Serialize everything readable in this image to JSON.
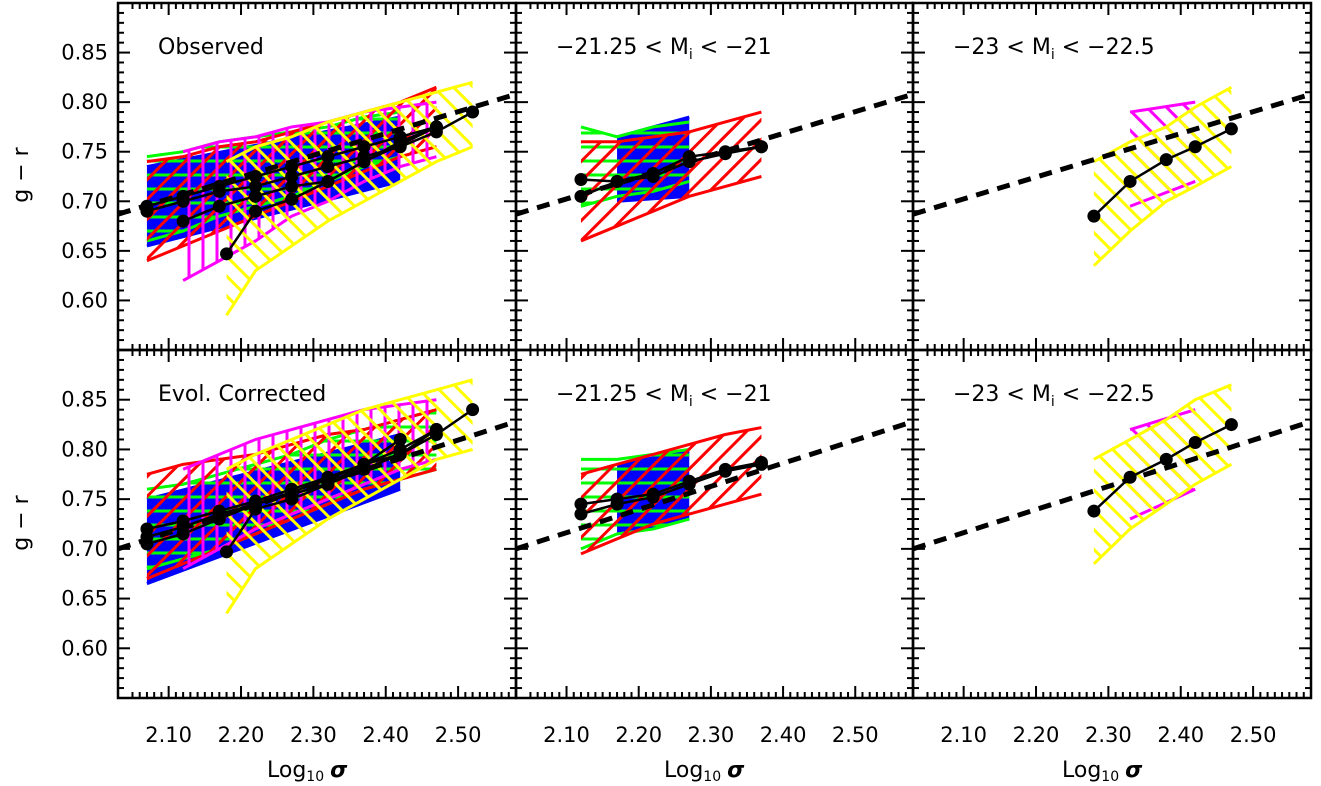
{
  "colors": {
    "blue": "#0000ff",
    "green": "#00ff00",
    "red": "#ff0000",
    "magenta": "#ff00ff",
    "yellow": "#ffff00",
    "black": "#000000"
  },
  "axes": {
    "xlabel": "Log",
    "xlabel_sub": "10",
    "xlabel_sigma": "σ",
    "ylabel": "g − r",
    "xticks": [
      "2.10",
      "2.20",
      "2.30",
      "2.40",
      "2.50"
    ],
    "yticks": [
      "0.85",
      "0.80",
      "0.75",
      "0.70",
      "0.65",
      "0.60"
    ]
  },
  "chart_data": [
    {
      "type": "line",
      "panel": "top-left",
      "label_lines": [
        "Observed"
      ],
      "xlim": [
        2.03,
        2.58
      ],
      "ylim": [
        0.55,
        0.9
      ],
      "bands": [
        {
          "color": "blue",
          "style": "solid",
          "x": [
            2.07,
            2.42
          ],
          "lo": [
            0.655,
            0.72
          ],
          "hi": [
            0.735,
            0.785
          ]
        },
        {
          "color": "green",
          "style": "horizontal",
          "x": [
            2.07,
            2.12,
            2.17,
            2.22,
            2.27,
            2.32,
            2.37,
            2.42
          ],
          "lo": [
            0.66,
            0.67,
            0.685,
            0.695,
            0.705,
            0.72,
            0.735,
            0.745
          ],
          "hi": [
            0.745,
            0.75,
            0.76,
            0.765,
            0.77,
            0.775,
            0.785,
            0.79
          ]
        },
        {
          "color": "red",
          "style": "diagonal",
          "x": [
            2.07,
            2.12,
            2.17,
            2.22,
            2.27,
            2.32,
            2.37,
            2.42,
            2.47
          ],
          "lo": [
            0.64,
            0.655,
            0.67,
            0.685,
            0.7,
            0.715,
            0.73,
            0.745,
            0.755
          ],
          "hi": [
            0.74,
            0.745,
            0.755,
            0.76,
            0.77,
            0.78,
            0.79,
            0.8,
            0.815
          ]
        },
        {
          "color": "magenta",
          "style": "vertical",
          "x": [
            2.12,
            2.17,
            2.22,
            2.27,
            2.32,
            2.37,
            2.42,
            2.47
          ],
          "lo": [
            0.62,
            0.64,
            0.66,
            0.685,
            0.7,
            0.72,
            0.735,
            0.745
          ],
          "hi": [
            0.75,
            0.76,
            0.765,
            0.775,
            0.78,
            0.79,
            0.795,
            0.8
          ]
        },
        {
          "color": "yellow",
          "style": "antidiagonal",
          "x": [
            2.18,
            2.22,
            2.27,
            2.32,
            2.37,
            2.42,
            2.47,
            2.52
          ],
          "lo": [
            0.585,
            0.63,
            0.655,
            0.68,
            0.7,
            0.72,
            0.74,
            0.755
          ],
          "hi": [
            0.74,
            0.755,
            0.765,
            0.78,
            0.79,
            0.8,
            0.81,
            0.82
          ]
        }
      ],
      "series": [
        {
          "x": [
            2.07,
            2.12,
            2.17,
            2.22,
            2.27,
            2.32,
            2.37,
            2.42,
            2.47,
            2.52
          ],
          "y": [
            0.69,
            0.7,
            0.71,
            0.715,
            0.725,
            0.735,
            0.745,
            0.755,
            0.77,
            0.79
          ]
        },
        {
          "x": [
            2.07,
            2.12,
            2.17,
            2.22,
            2.27,
            2.32,
            2.37,
            2.42,
            2.47
          ],
          "y": [
            0.695,
            0.705,
            0.715,
            0.725,
            0.735,
            0.745,
            0.755,
            0.765,
            0.775
          ]
        },
        {
          "x": [
            2.12,
            2.17,
            2.22,
            2.27,
            2.32,
            2.37,
            2.42,
            2.47
          ],
          "y": [
            0.68,
            0.695,
            0.705,
            0.715,
            0.72,
            0.74,
            0.76,
            0.775
          ]
        },
        {
          "x": [
            2.18,
            2.22,
            2.27,
            2.32,
            2.37,
            2.42,
            2.47
          ],
          "y": [
            0.647,
            0.69,
            0.702,
            0.72,
            0.74,
            0.757,
            0.775
          ]
        }
      ],
      "fit": {
        "x": [
          2.03,
          2.58
        ],
        "y": [
          0.687,
          0.808
        ]
      }
    },
    {
      "type": "line",
      "panel": "top-middle",
      "label_lines": [
        "−21.25 < M",
        "i",
        " < −21"
      ],
      "xlim": [
        2.03,
        2.58
      ],
      "ylim": [
        0.55,
        0.9
      ],
      "bands": [
        {
          "color": "blue",
          "style": "solid",
          "x": [
            2.17,
            2.27
          ],
          "lo": [
            0.7,
            0.705
          ],
          "hi": [
            0.765,
            0.785
          ]
        },
        {
          "color": "green",
          "style": "horizontal",
          "x": [
            2.12,
            2.17,
            2.22,
            2.27
          ],
          "lo": [
            0.695,
            0.705,
            0.71,
            0.72
          ],
          "hi": [
            0.775,
            0.765,
            0.775,
            0.78
          ]
        },
        {
          "color": "red",
          "style": "diagonal",
          "x": [
            2.12,
            2.17,
            2.22,
            2.27,
            2.32,
            2.37
          ],
          "lo": [
            0.66,
            0.675,
            0.69,
            0.705,
            0.715,
            0.725
          ],
          "hi": [
            0.76,
            0.76,
            0.765,
            0.77,
            0.78,
            0.79
          ]
        }
      ],
      "series": [
        {
          "x": [
            2.12,
            2.17,
            2.22,
            2.27,
            2.32,
            2.37
          ],
          "y": [
            0.705,
            0.72,
            0.725,
            0.74,
            0.748,
            0.755
          ]
        },
        {
          "x": [
            2.12,
            2.17,
            2.22,
            2.27,
            2.32,
            2.37
          ],
          "y": [
            0.722,
            0.72,
            0.728,
            0.745,
            0.75,
            0.755
          ]
        }
      ],
      "fit": {
        "x": [
          2.03,
          2.58
        ],
        "y": [
          0.687,
          0.808
        ]
      }
    },
    {
      "type": "line",
      "panel": "top-right",
      "label_lines": [
        "−23 < M",
        "i",
        " < −22.5"
      ],
      "xlim": [
        2.03,
        2.58
      ],
      "ylim": [
        0.55,
        0.9
      ],
      "bands": [
        {
          "color": "magenta",
          "style": "antidiagonal",
          "x": [
            2.33,
            2.42
          ],
          "lo": [
            0.695,
            0.72
          ],
          "hi": [
            0.79,
            0.8
          ]
        },
        {
          "color": "yellow",
          "style": "antidiagonal",
          "x": [
            2.28,
            2.33,
            2.38,
            2.42,
            2.47
          ],
          "lo": [
            0.635,
            0.67,
            0.7,
            0.715,
            0.735
          ],
          "hi": [
            0.74,
            0.76,
            0.775,
            0.795,
            0.815
          ]
        }
      ],
      "series": [
        {
          "x": [
            2.28,
            2.33,
            2.38,
            2.42,
            2.47
          ],
          "y": [
            0.685,
            0.72,
            0.742,
            0.755,
            0.773
          ]
        }
      ],
      "fit": {
        "x": [
          2.03,
          2.58
        ],
        "y": [
          0.687,
          0.808
        ]
      }
    },
    {
      "type": "line",
      "panel": "bottom-left",
      "label_lines": [
        "Evol. Corrected"
      ],
      "xlim": [
        2.03,
        2.58
      ],
      "ylim": [
        0.55,
        0.9
      ],
      "bands": [
        {
          "color": "blue",
          "style": "solid",
          "x": [
            2.07,
            2.42
          ],
          "lo": [
            0.665,
            0.76
          ],
          "hi": [
            0.75,
            0.815
          ]
        },
        {
          "color": "green",
          "style": "horizontal",
          "x": [
            2.07,
            2.12,
            2.17,
            2.22,
            2.27,
            2.32,
            2.37,
            2.42,
            2.47
          ],
          "lo": [
            0.68,
            0.69,
            0.7,
            0.715,
            0.73,
            0.745,
            0.76,
            0.77,
            0.78
          ],
          "hi": [
            0.76,
            0.765,
            0.775,
            0.785,
            0.795,
            0.81,
            0.82,
            0.83,
            0.84
          ]
        },
        {
          "color": "red",
          "style": "diagonal",
          "x": [
            2.07,
            2.12,
            2.17,
            2.22,
            2.27,
            2.32,
            2.37,
            2.42,
            2.47
          ],
          "lo": [
            0.67,
            0.685,
            0.7,
            0.715,
            0.73,
            0.745,
            0.76,
            0.77,
            0.78
          ],
          "hi": [
            0.775,
            0.785,
            0.79,
            0.795,
            0.805,
            0.815,
            0.82,
            0.83,
            0.84
          ]
        },
        {
          "color": "magenta",
          "style": "vertical",
          "x": [
            2.12,
            2.17,
            2.22,
            2.27,
            2.32,
            2.37,
            2.42,
            2.47
          ],
          "lo": [
            0.68,
            0.7,
            0.72,
            0.735,
            0.75,
            0.765,
            0.78,
            0.79
          ],
          "hi": [
            0.78,
            0.795,
            0.81,
            0.82,
            0.83,
            0.84,
            0.845,
            0.85
          ]
        },
        {
          "color": "yellow",
          "style": "antidiagonal",
          "x": [
            2.18,
            2.22,
            2.27,
            2.32,
            2.37,
            2.42,
            2.47,
            2.52
          ],
          "lo": [
            0.635,
            0.68,
            0.705,
            0.73,
            0.75,
            0.77,
            0.79,
            0.8
          ],
          "hi": [
            0.78,
            0.795,
            0.81,
            0.825,
            0.84,
            0.85,
            0.86,
            0.87
          ]
        }
      ],
      "series": [
        {
          "x": [
            2.07,
            2.12,
            2.17,
            2.22,
            2.27,
            2.32,
            2.37,
            2.42,
            2.47,
            2.52
          ],
          "y": [
            0.712,
            0.722,
            0.735,
            0.745,
            0.755,
            0.765,
            0.78,
            0.795,
            0.815,
            0.84
          ]
        },
        {
          "x": [
            2.07,
            2.12,
            2.17,
            2.22,
            2.27,
            2.32,
            2.37,
            2.42,
            2.47
          ],
          "y": [
            0.72,
            0.728,
            0.738,
            0.748,
            0.76,
            0.772,
            0.785,
            0.8,
            0.82
          ]
        },
        {
          "x": [
            2.07,
            2.12,
            2.17,
            2.22,
            2.27,
            2.32,
            2.37,
            2.42
          ],
          "y": [
            0.705,
            0.715,
            0.73,
            0.745,
            0.757,
            0.77,
            0.785,
            0.81
          ]
        },
        {
          "x": [
            2.18,
            2.22,
            2.27,
            2.32,
            2.37,
            2.42,
            2.47
          ],
          "y": [
            0.697,
            0.74,
            0.75,
            0.765,
            0.785,
            0.795,
            0.82
          ]
        }
      ],
      "fit": {
        "x": [
          2.03,
          2.58
        ],
        "y": [
          0.7,
          0.828
        ]
      }
    },
    {
      "type": "line",
      "panel": "bottom-middle",
      "label_lines": [
        "−21.25 < M",
        "i",
        " < −21"
      ],
      "xlim": [
        2.03,
        2.58
      ],
      "ylim": [
        0.55,
        0.9
      ],
      "bands": [
        {
          "color": "blue",
          "style": "solid",
          "x": [
            2.17,
            2.27
          ],
          "lo": [
            0.715,
            0.73
          ],
          "hi": [
            0.785,
            0.798
          ]
        },
        {
          "color": "green",
          "style": "horizontal",
          "x": [
            2.12,
            2.17,
            2.22,
            2.27
          ],
          "lo": [
            0.7,
            0.715,
            0.72,
            0.73
          ],
          "hi": [
            0.79,
            0.79,
            0.795,
            0.8
          ]
        },
        {
          "color": "red",
          "style": "diagonal",
          "x": [
            2.12,
            2.17,
            2.22,
            2.27,
            2.32,
            2.37
          ],
          "lo": [
            0.695,
            0.71,
            0.725,
            0.735,
            0.745,
            0.755
          ],
          "hi": [
            0.775,
            0.785,
            0.795,
            0.805,
            0.815,
            0.822
          ]
        }
      ],
      "series": [
        {
          "x": [
            2.12,
            2.17,
            2.22,
            2.27,
            2.32,
            2.37
          ],
          "y": [
            0.735,
            0.745,
            0.752,
            0.765,
            0.778,
            0.785
          ]
        },
        {
          "x": [
            2.12,
            2.17,
            2.22,
            2.27,
            2.32,
            2.37
          ],
          "y": [
            0.745,
            0.75,
            0.755,
            0.768,
            0.78,
            0.787
          ]
        }
      ],
      "fit": {
        "x": [
          2.03,
          2.58
        ],
        "y": [
          0.7,
          0.828
        ]
      }
    },
    {
      "type": "line",
      "panel": "bottom-right",
      "label_lines": [
        "−23 < M",
        "i",
        " < −22.5"
      ],
      "xlim": [
        2.03,
        2.58
      ],
      "ylim": [
        0.55,
        0.9
      ],
      "bands": [
        {
          "color": "magenta",
          "style": "antidiagonal",
          "x": [
            2.33,
            2.42
          ],
          "lo": [
            0.73,
            0.76
          ],
          "hi": [
            0.82,
            0.84
          ]
        },
        {
          "color": "yellow",
          "style": "antidiagonal",
          "x": [
            2.28,
            2.33,
            2.38,
            2.42,
            2.47
          ],
          "lo": [
            0.685,
            0.72,
            0.745,
            0.765,
            0.785
          ],
          "hi": [
            0.79,
            0.81,
            0.83,
            0.85,
            0.865
          ]
        }
      ],
      "series": [
        {
          "x": [
            2.28,
            2.33,
            2.38,
            2.42,
            2.47
          ],
          "y": [
            0.738,
            0.772,
            0.79,
            0.807,
            0.825
          ]
        }
      ],
      "fit": {
        "x": [
          2.03,
          2.58
        ],
        "y": [
          0.7,
          0.828
        ]
      }
    }
  ]
}
